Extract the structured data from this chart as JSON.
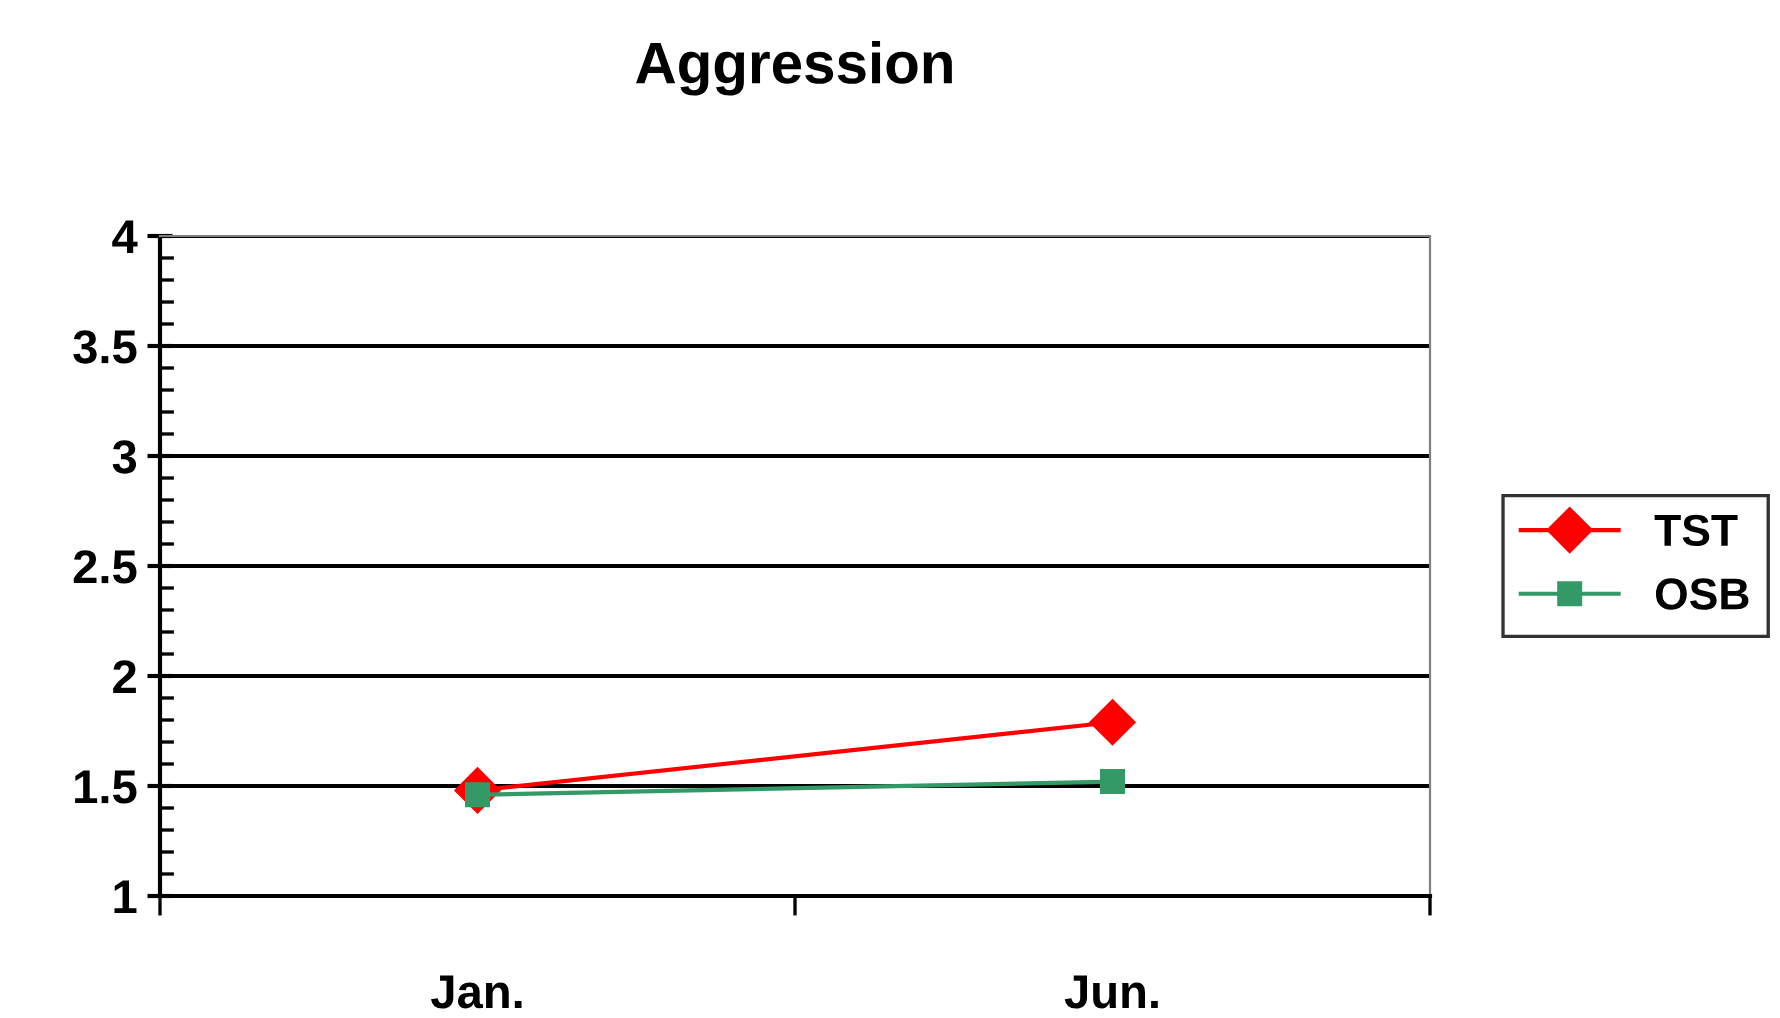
{
  "chart_data": {
    "type": "line",
    "title": "Aggression",
    "categories": [
      "Jan.",
      "Jun."
    ],
    "series": [
      {
        "name": "TST",
        "color": "#ff0000",
        "marker": "diamond",
        "values": [
          1.48,
          1.79
        ]
      },
      {
        "name": "OSB",
        "color": "#339966",
        "marker": "square",
        "values": [
          1.46,
          1.52
        ]
      }
    ],
    "ylim": [
      1,
      4
    ],
    "yticks": [
      1,
      1.5,
      2,
      2.5,
      3,
      3.5,
      4
    ],
    "grid": "y",
    "legend": "right",
    "line_style": "solid"
  }
}
